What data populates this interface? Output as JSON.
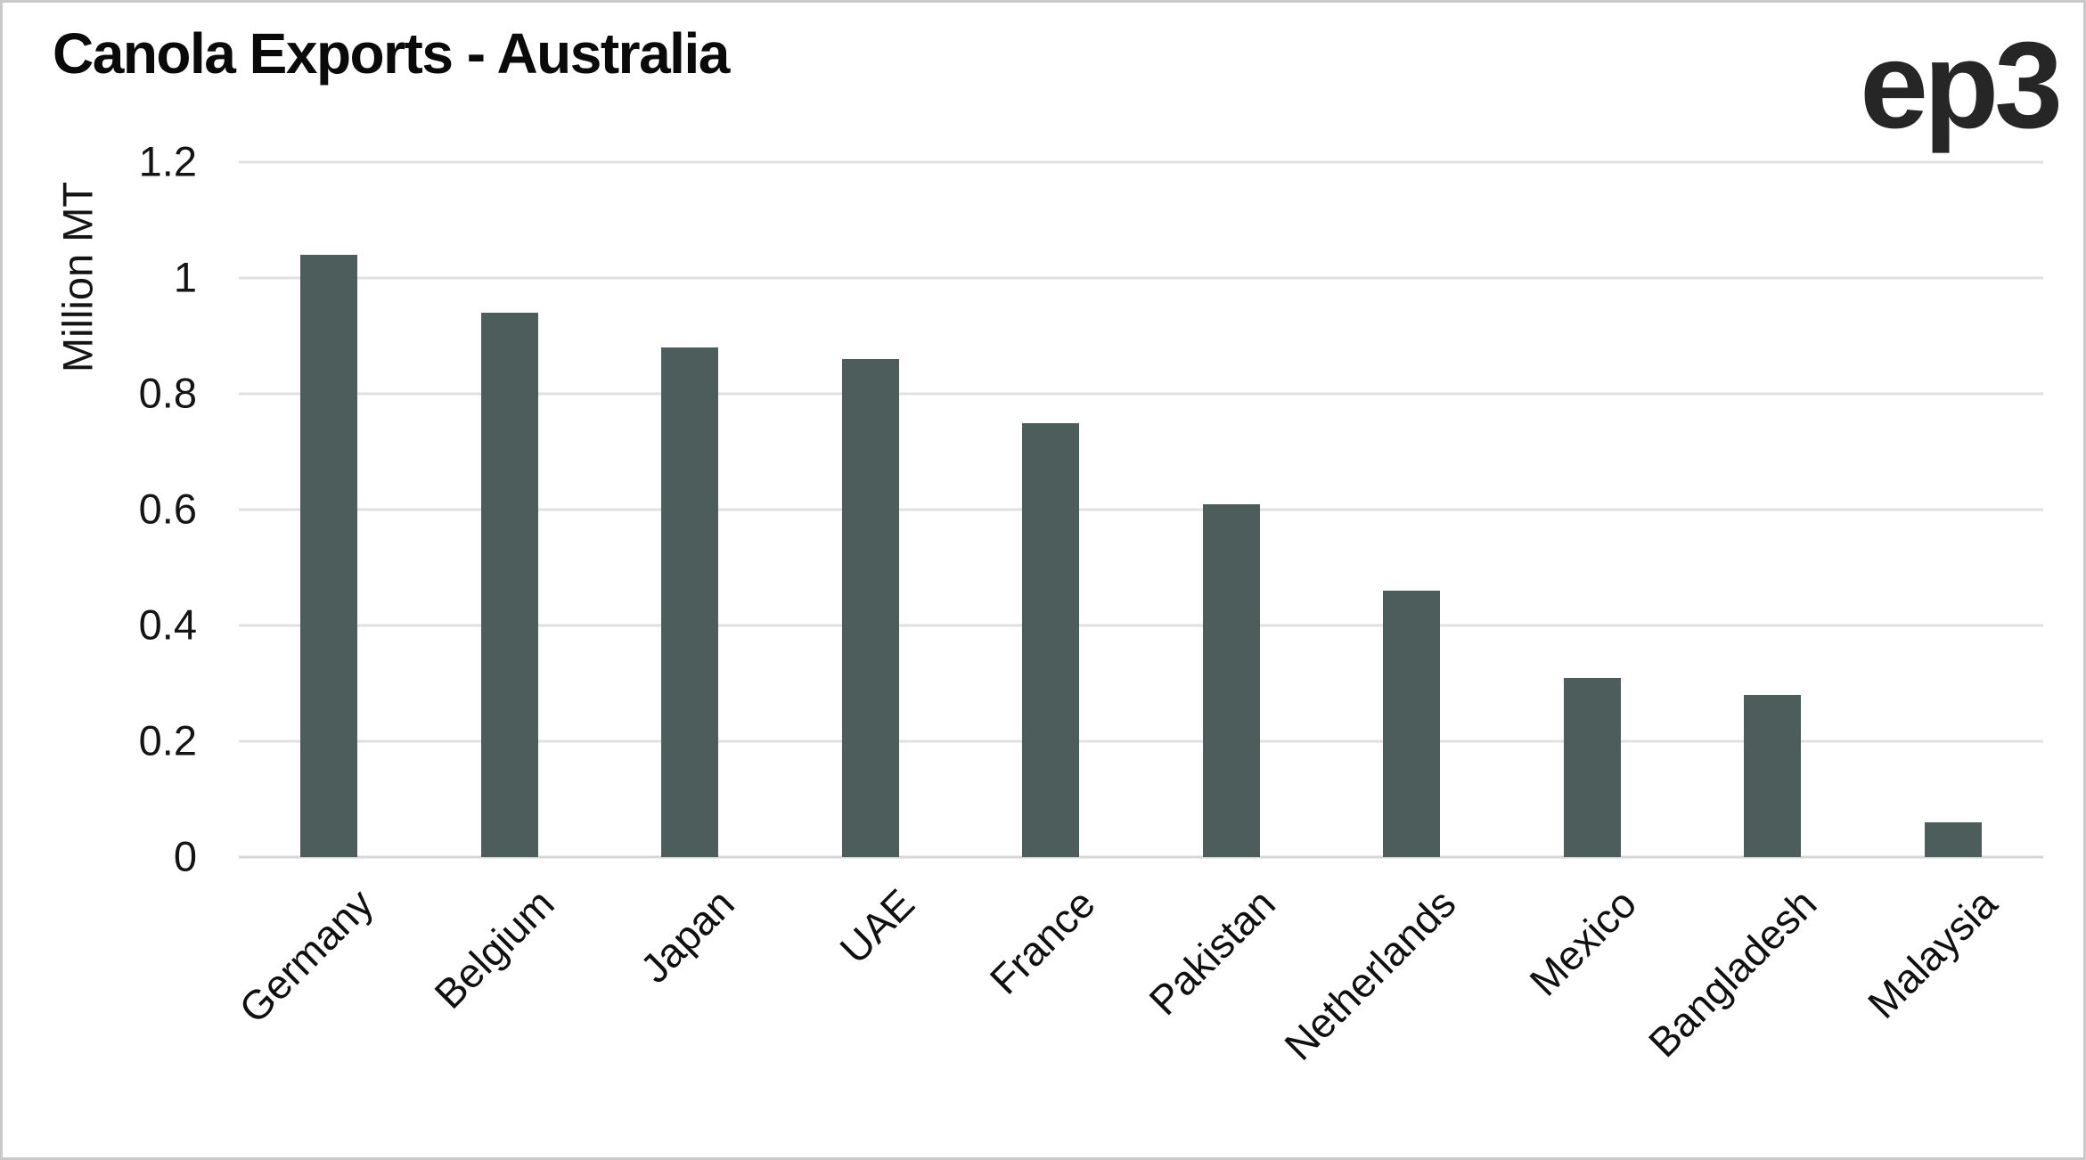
{
  "branding": {
    "logo_text": "ep3"
  },
  "chart_data": {
    "type": "bar",
    "title": "Canola Exports - Australia",
    "xlabel": "",
    "ylabel": "Million MT",
    "categories": [
      "Germany",
      "Belgium",
      "Japan",
      "UAE",
      "France",
      "Pakistan",
      "Netherlands",
      "Mexico",
      "Bangladesh",
      "Malaysia"
    ],
    "values": [
      1.04,
      0.94,
      0.88,
      0.86,
      0.75,
      0.61,
      0.46,
      0.31,
      0.28,
      0.06
    ],
    "ylim": [
      0,
      1.2
    ],
    "yticks": [
      0,
      0.2,
      0.4,
      0.6,
      0.8,
      1,
      1.2
    ],
    "ytick_labels": [
      "0",
      "0.2",
      "0.4",
      "0.6",
      "0.8",
      "1",
      "1.2"
    ],
    "grid": "horizontal",
    "legend": "none",
    "x_label_rotation_deg": 45,
    "bar_color": "#4c5d5c",
    "gridline_color": "#e0e0e0",
    "zero_line_color": "#d6d6d6"
  }
}
